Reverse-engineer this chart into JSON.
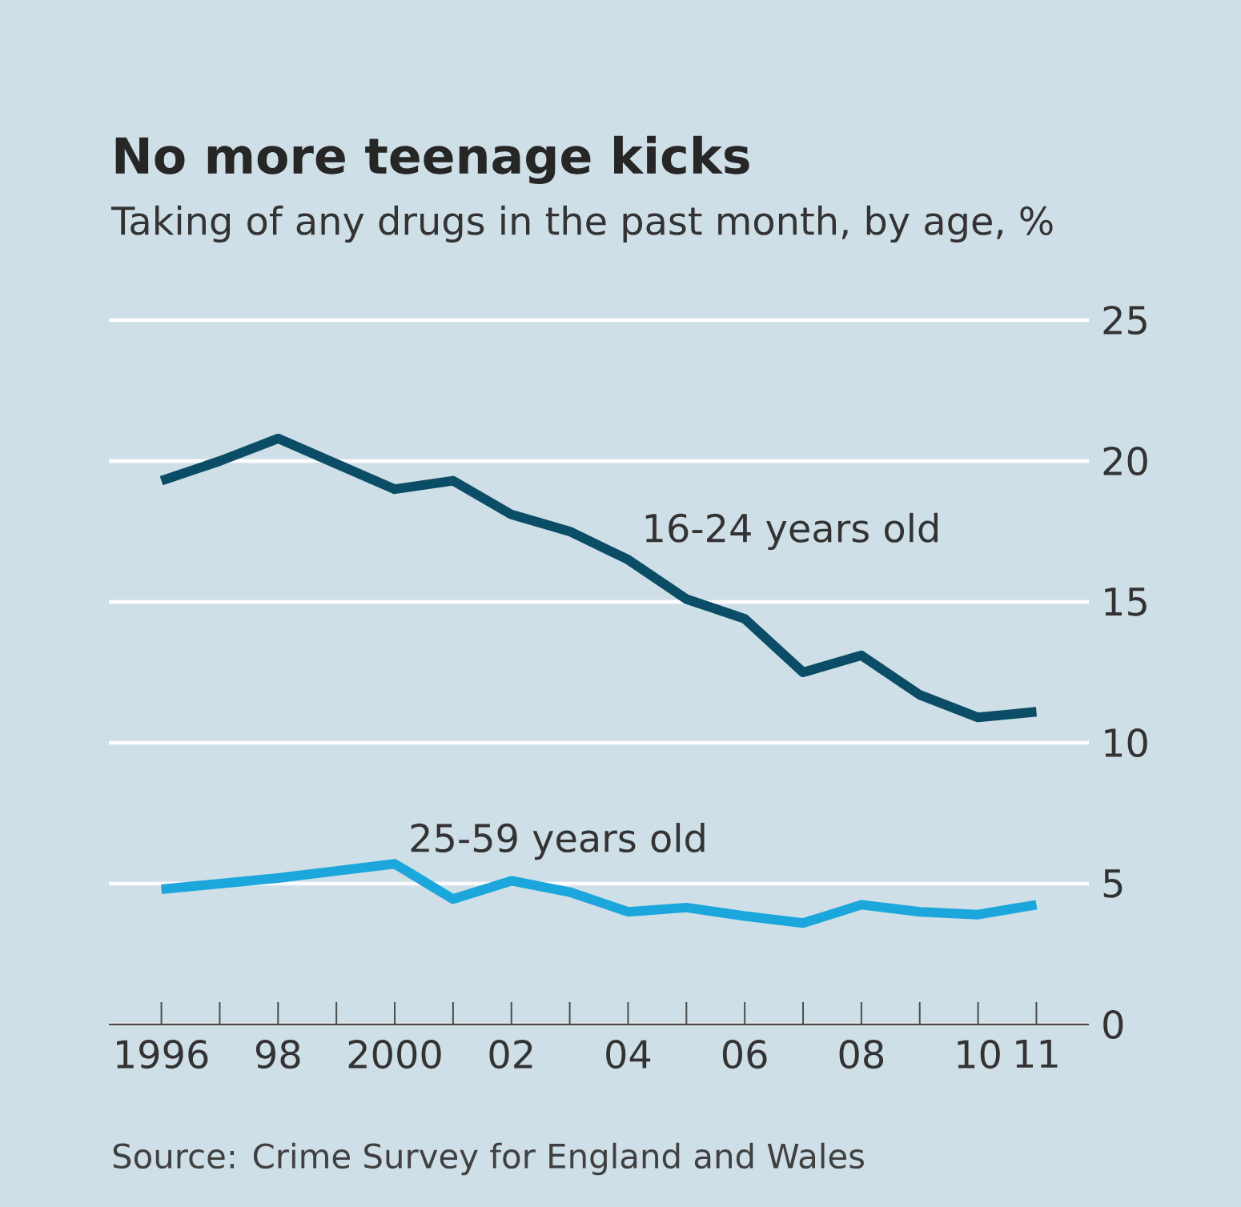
{
  "chart_data": {
    "type": "line",
    "title": "No more teenage kicks",
    "subtitle": "Taking of any drugs in the past month, by age, %",
    "annotations": [
      "Source: Crime Survey for England and Wales"
    ],
    "x": [
      1996,
      1997,
      1998,
      1999,
      2000,
      2001,
      2002,
      2003,
      2004,
      2005,
      2006,
      2007,
      2008,
      2009,
      2010,
      2011
    ],
    "series": [
      {
        "name": "16-24 years old",
        "color": "#0b4d66",
        "values": [
          19.3,
          20.0,
          20.8,
          19.9,
          19.0,
          19.3,
          18.1,
          17.5,
          16.5,
          15.1,
          14.4,
          12.5,
          13.1,
          11.7,
          10.9,
          11.1
        ]
      },
      {
        "name": "25-59 years old",
        "color": "#1ba6dc",
        "values": [
          4.8,
          5.0,
          5.2,
          5.45,
          5.7,
          4.45,
          5.1,
          4.7,
          4.0,
          4.15,
          3.85,
          3.6,
          4.25,
          4.0,
          3.9,
          4.25
        ]
      }
    ],
    "xlim": [
      1995.1,
      2011.9
    ],
    "ylim": [
      0,
      25
    ],
    "xticks": [
      {
        "value": 1996,
        "label": "1996"
      },
      {
        "value": 1997,
        "label": null
      },
      {
        "value": 1998,
        "label": "98"
      },
      {
        "value": 1999,
        "label": null
      },
      {
        "value": 2000,
        "label": "2000"
      },
      {
        "value": 2001,
        "label": null
      },
      {
        "value": 2002,
        "label": "02"
      },
      {
        "value": 2003,
        "label": null
      },
      {
        "value": 2004,
        "label": "04"
      },
      {
        "value": 2005,
        "label": null
      },
      {
        "value": 2006,
        "label": "06"
      },
      {
        "value": 2007,
        "label": null
      },
      {
        "value": 2008,
        "label": "08"
      },
      {
        "value": 2009,
        "label": null
      },
      {
        "value": 2010,
        "label": "10"
      },
      {
        "value": 2011,
        "label": "11"
      }
    ],
    "yticks": [
      0,
      5,
      10,
      15,
      20,
      25
    ],
    "grid": "y",
    "legend": false,
    "marker": "none",
    "line_style": "solid"
  }
}
